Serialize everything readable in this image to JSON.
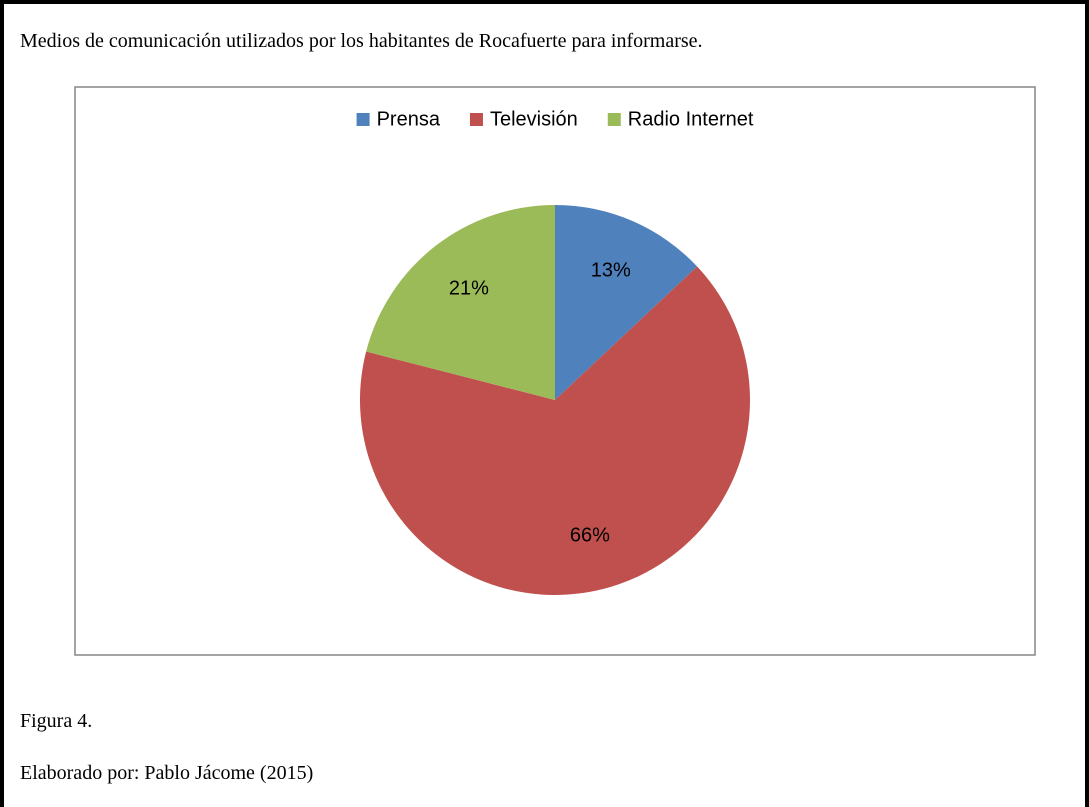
{
  "chart_data": {
    "type": "pie",
    "title": "Medios de comunicación utilizados por los habitantes de Rocafuerte para informarse.",
    "categories": [
      "Prensa",
      "Televisión",
      "Radio Internet"
    ],
    "values": [
      13,
      66,
      21
    ],
    "value_labels": [
      "13%",
      "66%",
      "21%"
    ],
    "colors": [
      "#4f81bd",
      "#c0504d",
      "#9bbb59"
    ],
    "legend": "top"
  },
  "figure_label": "Figura 4.",
  "source": "Elaborado por: Pablo Jácome (2015)"
}
